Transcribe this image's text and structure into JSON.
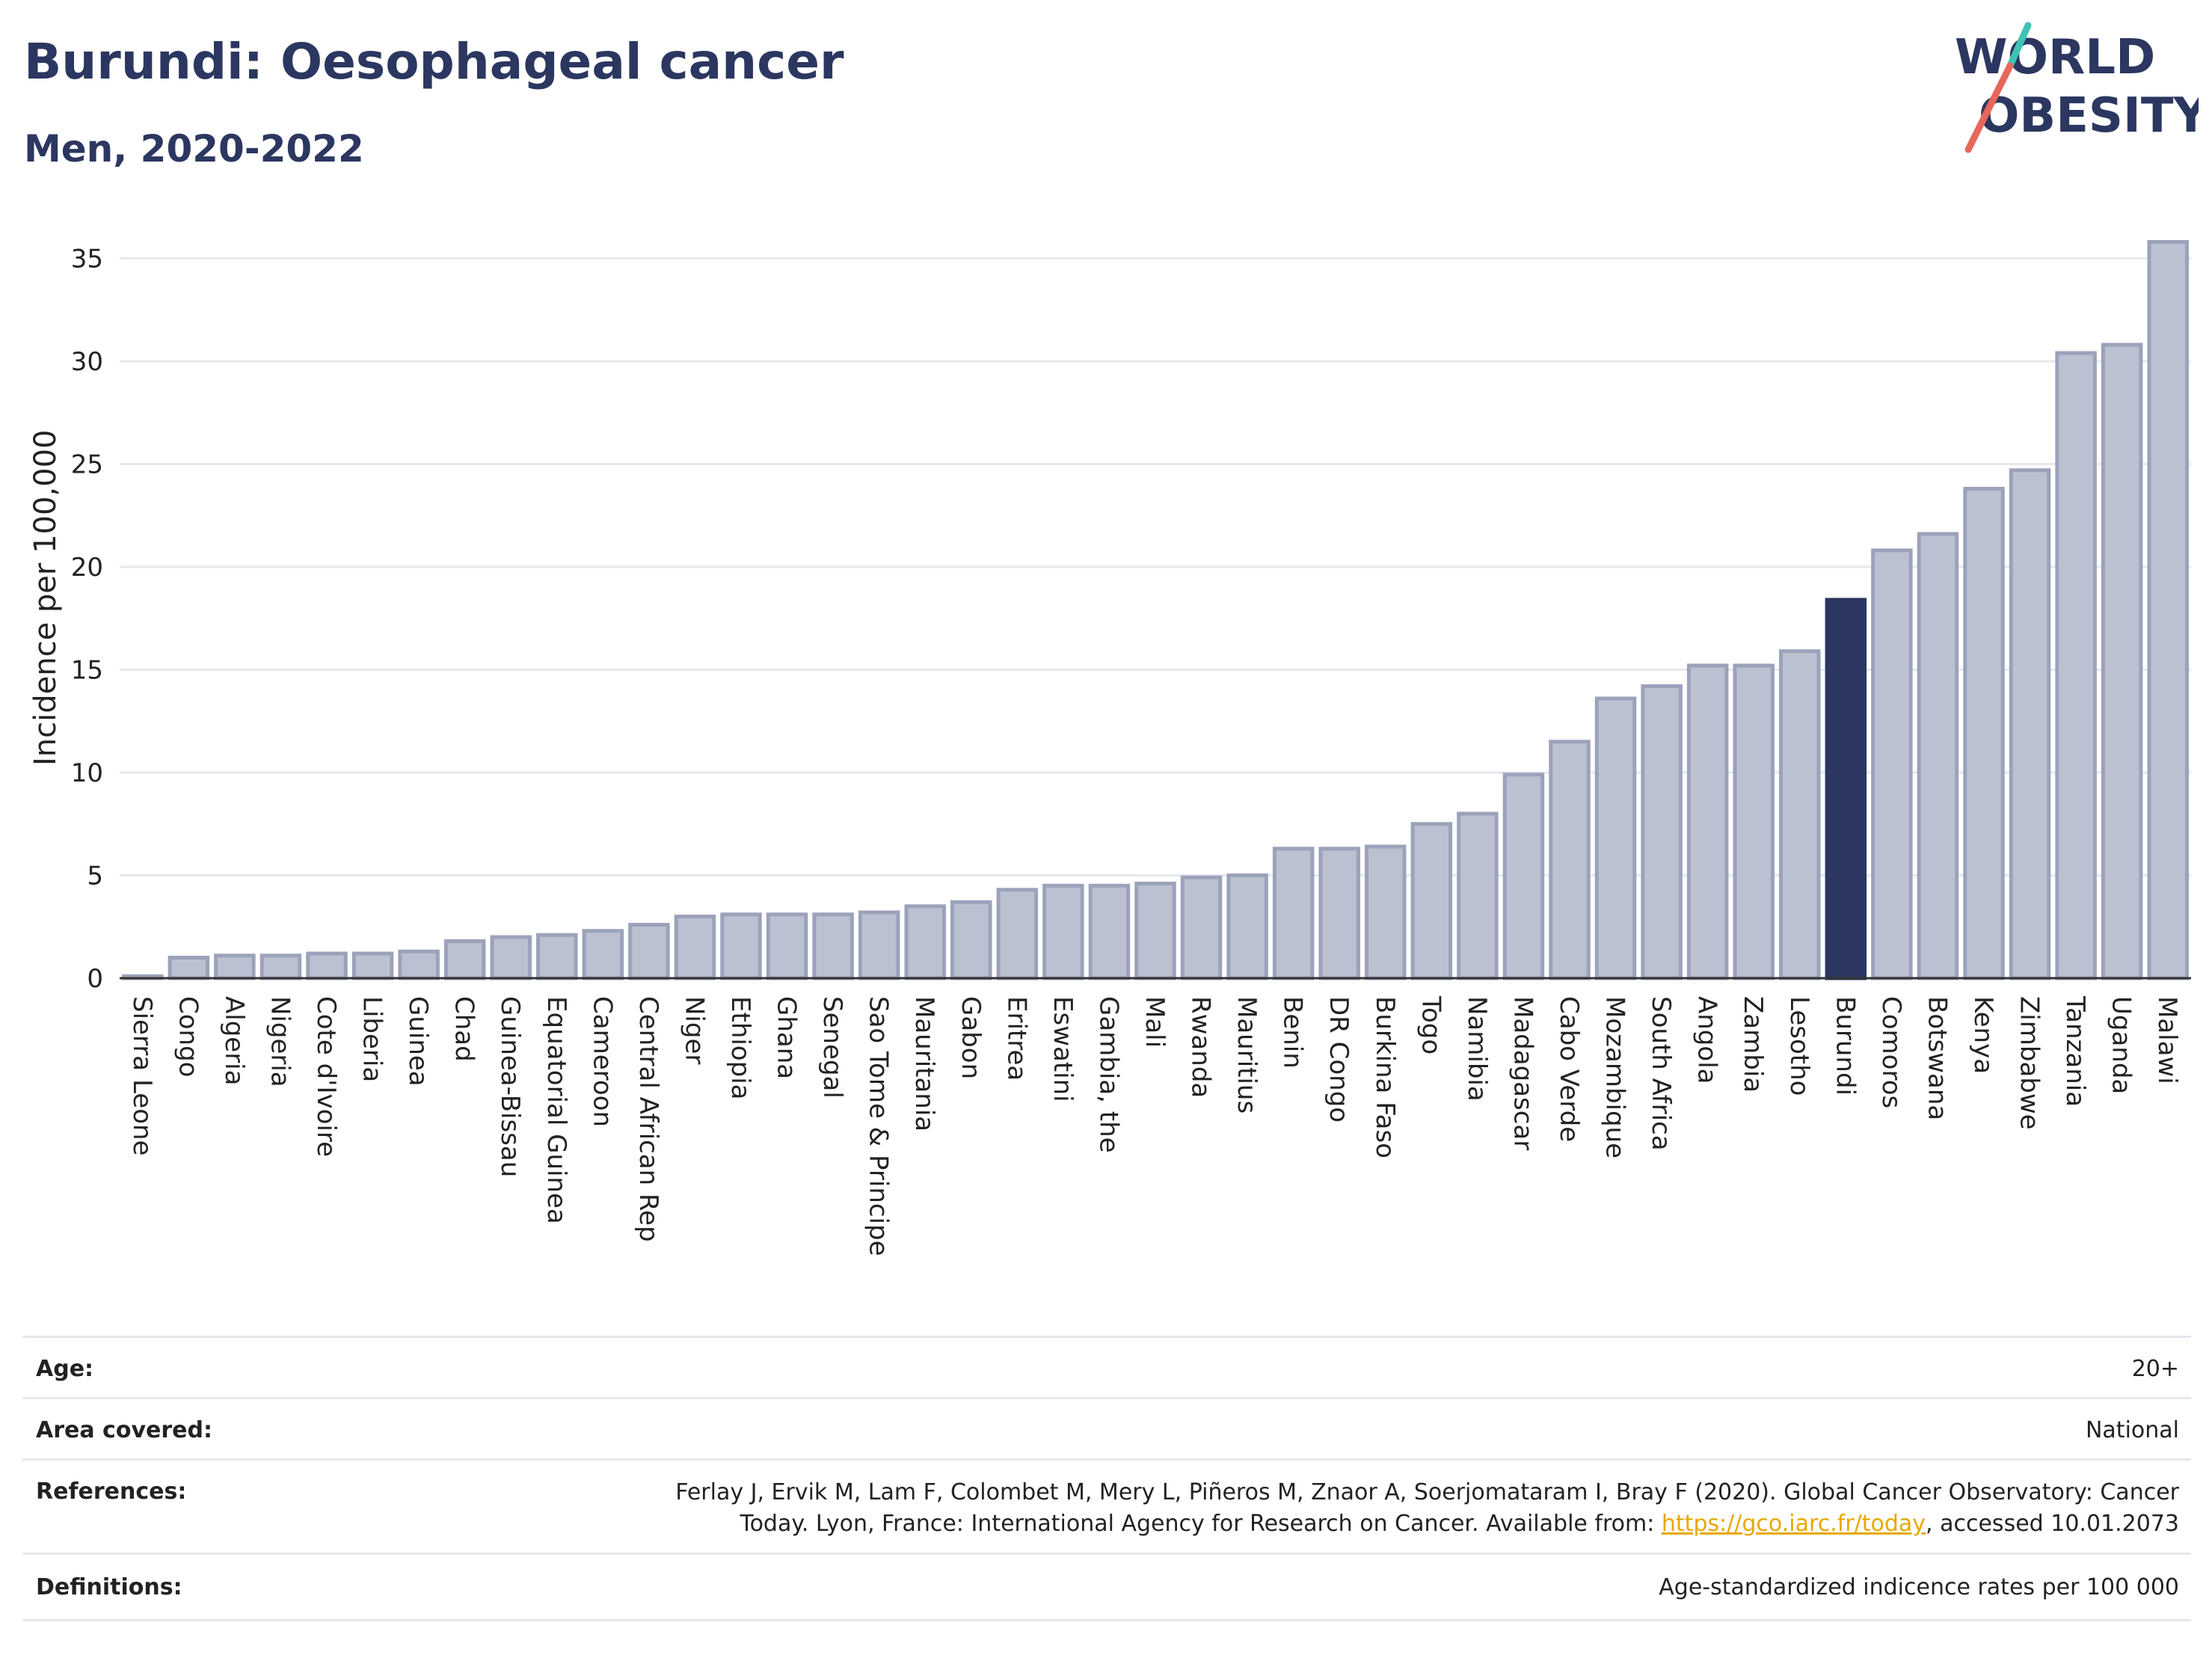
{
  "header": {
    "title": "Burundi: Oesophageal cancer",
    "subtitle": "Men, 2020-2022"
  },
  "logo": {
    "line1": "WORLD",
    "line2": "OBESITY",
    "colors": {
      "text": "#2b3760",
      "slash_red": "#e8675a",
      "slash_teal": "#3ec3b5"
    }
  },
  "chart_data": {
    "type": "bar",
    "title": "Burundi: Oesophageal cancer",
    "subtitle": "Men, 2020-2022",
    "ylabel": "Incidence per 100,000",
    "xlabel": "",
    "ylim": [
      0,
      37
    ],
    "yticks": [
      0,
      5,
      10,
      15,
      20,
      25,
      30,
      35
    ],
    "grid": true,
    "highlight": "Burundi",
    "colors": {
      "bar": "#bcc1d1",
      "bar_edge": "#9ba2ba",
      "highlight": "#2b3760",
      "grid": "#e6e8ee"
    },
    "categories": [
      "Sierra Leone",
      "Congo",
      "Algeria",
      "Nigeria",
      "Cote d'Ivoire",
      "Liberia",
      "Guinea",
      "Chad",
      "Guinea-Bissau",
      "Equatorial Guinea",
      "Cameroon",
      "Central African Rep",
      "Niger",
      "Ethiopia",
      "Ghana",
      "Senegal",
      "Sao Tome & Principe",
      "Mauritania",
      "Gabon",
      "Eritrea",
      "Eswatini",
      "Gambia, the",
      "Mali",
      "Rwanda",
      "Mauritius",
      "Benin",
      "DR Congo",
      "Burkina Faso",
      "Togo",
      "Namibia",
      "Madagascar",
      "Cabo Verde",
      "Mozambique",
      "South Africa",
      "Angola",
      "Zambia",
      "Lesotho",
      "Burundi",
      "Comoros",
      "Botswana",
      "Kenya",
      "Zimbabwe",
      "Tanzania",
      "Uganda",
      "Malawi"
    ],
    "values": [
      0.1,
      1.0,
      1.1,
      1.1,
      1.2,
      1.2,
      1.3,
      1.8,
      2.0,
      2.1,
      2.3,
      2.6,
      3.0,
      3.1,
      3.1,
      3.1,
      3.2,
      3.5,
      3.7,
      4.3,
      4.5,
      4.5,
      4.6,
      4.9,
      5.0,
      6.3,
      6.3,
      6.4,
      7.5,
      8.0,
      9.9,
      11.5,
      13.6,
      14.2,
      15.2,
      15.2,
      15.9,
      18.4,
      20.8,
      21.6,
      23.8,
      24.7,
      30.4,
      30.8,
      35.8
    ]
  },
  "meta": {
    "age_label": "Age:",
    "age_value": "20+",
    "area_label": "Area covered:",
    "area_value": "National",
    "references_label": "References:",
    "references_text1": "Ferlay J, Ervik M, Lam F, Colombet M, Mery L, Piñeros M, Znaor A, Soerjomataram I, Bray F (2020). Global Cancer Observatory: Cancer",
    "references_text2": "Today. Lyon, France: International Agency for Research on Cancer. Available from: ",
    "references_link": "https://gco.iarc.fr/today",
    "references_text3": ", accessed 10.01.2073",
    "definitions_label": "Definitions:",
    "definitions_value": "Age-standardized indicence rates per 100 000"
  }
}
